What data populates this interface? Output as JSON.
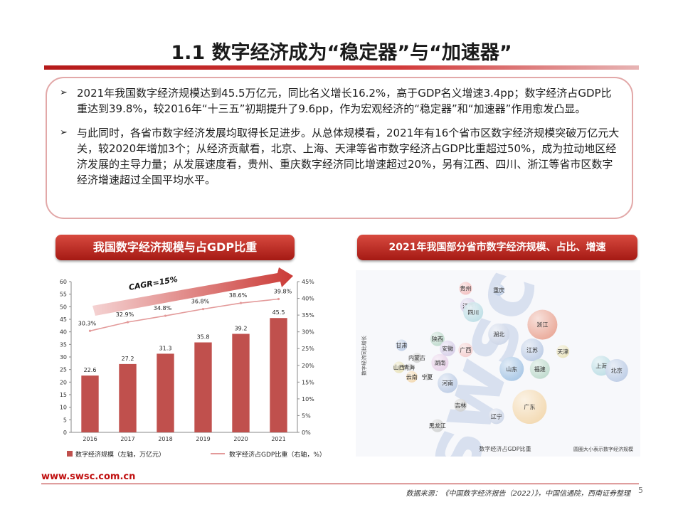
{
  "slide": {
    "title": "1.1 数字经济成为“稳定器”与“加速器”",
    "footer_url": "www.swsc.com.cn",
    "source": "数据来源：《中国数字经济报告（2022）》，中国信通院，西南证券整理",
    "page_number": "5",
    "accent_color": "#b51a1a"
  },
  "summary": {
    "bullet_symbol": "➢",
    "bullets": [
      "2021年我国数字经济规模达到45.5万亿元，同比名义增长16.2%，高于GDP名义增速3.4pp；数字经济占GDP比重达到39.8%，较2016年“十三五”初期提升了9.6pp，作为宏观经济的“稳定器”和“加速器”作用愈发凸显。",
      "与此同时，各省市数字经济发展均取得长足进步。从总体规模看，2021年有16个省市区数字经济规模突破万亿元大关，较2020年增加3个；从经济贡献看，北京、上海、天津等省市数字经济占GDP比重超过50%，成为拉动地区经济发展的主导力量；从发展速度看，贵州、重庆数字经济同比增速超过20%，另有江西、四川、浙江等省市区数字经济增速超过全国平均水平。"
    ]
  },
  "left_chart_header": "我国数字经济规模与占GDP比重",
  "right_chart_header": "2021年我国部分省市数字经济规模、占比、增速",
  "chart_data": [
    {
      "type": "bar",
      "categories": [
        "2016",
        "2017",
        "2018",
        "2019",
        "2020",
        "2021"
      ],
      "series": [
        {
          "name": "数字经济规模（左轴，万亿元）",
          "type": "bar",
          "axis": "left",
          "color": "#c0504d",
          "values": [
            22.6,
            27.2,
            31.3,
            35.8,
            39.2,
            45.5
          ],
          "labels": [
            "22.6",
            "27.2",
            "31.3",
            "35.8",
            "39.2",
            "45.5"
          ]
        },
        {
          "name": "数字经济占GDP比重（右轴，%）",
          "type": "line",
          "axis": "right",
          "color": "#e39a9a",
          "values": [
            30.3,
            32.9,
            34.8,
            36.8,
            38.6,
            39.8
          ],
          "labels": [
            "30.3%",
            "32.9%",
            "34.8%",
            "36.8%",
            "38.6%",
            "39.8%"
          ]
        }
      ],
      "ylim": [
        0,
        60
      ],
      "yticks": [
        0,
        5,
        10,
        15,
        20,
        25,
        30,
        35,
        40,
        45,
        50,
        55,
        60
      ],
      "y2lim": [
        0,
        45
      ],
      "y2ticks": [
        "0%",
        "5%",
        "10%",
        "15%",
        "20%",
        "25%",
        "30%",
        "35%",
        "40%",
        "45%"
      ],
      "annotation": "CAGR=15%",
      "legend_position": "bottom",
      "grid": false
    },
    {
      "type": "scatter",
      "ylabel": "数字经济同比增长",
      "xlabel": "数字经济占GDP比重",
      "note": "圆圈大小表示数字经济规模",
      "watermark": "swsc",
      "points": [
        {
          "label": "贵州",
          "x": 34,
          "y": 93,
          "r": 9,
          "color": "#f2b8b8"
        },
        {
          "label": "重庆",
          "x": 47,
          "y": 92,
          "r": 8,
          "color": "#b7c7e2"
        },
        {
          "label": "江西",
          "x": 35,
          "y": 82,
          "r": 11,
          "color": "#d4c9e6"
        },
        {
          "label": "四川",
          "x": 37,
          "y": 78,
          "r": 14,
          "color": "#b7dbe2"
        },
        {
          "label": "浙江",
          "x": 64,
          "y": 70,
          "r": 21,
          "color": "#e89e8c"
        },
        {
          "label": "湖北",
          "x": 47,
          "y": 64,
          "r": 15,
          "color": "#c9d3e6"
        },
        {
          "label": "甘肃",
          "x": 9,
          "y": 57,
          "r": 8,
          "color": "#b7c7e2"
        },
        {
          "label": "陕西",
          "x": 23,
          "y": 61,
          "r": 10,
          "color": "#b8d6c7"
        },
        {
          "label": "安徽",
          "x": 27,
          "y": 55,
          "r": 11,
          "color": "#d4c9e6"
        },
        {
          "label": "广西",
          "x": 34,
          "y": 54,
          "r": 10,
          "color": "#f2c8c8"
        },
        {
          "label": "内蒙古",
          "x": 15,
          "y": 49,
          "r": 7,
          "color": "#cdcdcd"
        },
        {
          "label": "山西",
          "x": 8,
          "y": 43,
          "r": 8,
          "color": "#e8e0b4"
        },
        {
          "label": "青海",
          "x": 12,
          "y": 43,
          "r": 5,
          "color": "#cdcdcd"
        },
        {
          "label": "湖南",
          "x": 24,
          "y": 46,
          "r": 12,
          "color": "#e6cce6"
        },
        {
          "label": "江苏",
          "x": 60,
          "y": 54,
          "r": 16,
          "color": "#b7c7e2"
        },
        {
          "label": "天津",
          "x": 72,
          "y": 53,
          "r": 9,
          "color": "#e8e0b4"
        },
        {
          "label": "山东",
          "x": 52,
          "y": 42,
          "r": 17,
          "color": "#9fc0e2"
        },
        {
          "label": "福建",
          "x": 63,
          "y": 42,
          "r": 14,
          "color": "#b8d6c7"
        },
        {
          "label": "云南",
          "x": 13,
          "y": 37,
          "r": 8,
          "color": "#f2d5a9"
        },
        {
          "label": "宁夏",
          "x": 19,
          "y": 37,
          "r": 5,
          "color": "#cdcdcd"
        },
        {
          "label": "河南",
          "x": 27,
          "y": 33,
          "r": 14,
          "color": "#b7c7e2"
        },
        {
          "label": "吉林",
          "x": 32,
          "y": 19,
          "r": 9,
          "color": "#cdcdcd"
        },
        {
          "label": "黑龙江",
          "x": 23,
          "y": 6,
          "r": 9,
          "color": "#cdcdcd"
        },
        {
          "label": "辽宁",
          "x": 46,
          "y": 12,
          "r": 11,
          "color": "#c9d3e6"
        },
        {
          "label": "广东",
          "x": 59,
          "y": 18,
          "r": 24,
          "color": "#f2d5a9"
        },
        {
          "label": "上海",
          "x": 87,
          "y": 44,
          "r": 14,
          "color": "#b7dbe2"
        },
        {
          "label": "北京",
          "x": 93,
          "y": 41,
          "r": 16,
          "color": "#b7c7e2"
        }
      ]
    }
  ]
}
